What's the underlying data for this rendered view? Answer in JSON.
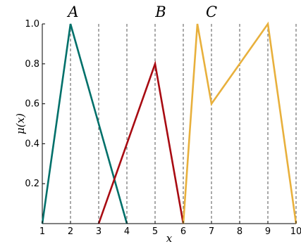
{
  "chart_data": {
    "type": "line",
    "title": "",
    "xlabel": "x",
    "ylabel": "μ(x)",
    "xlim": [
      1,
      10
    ],
    "ylim": [
      0,
      1.0
    ],
    "x_ticks": [
      "1",
      "2",
      "3",
      "4",
      "5",
      "6",
      "7",
      "8",
      "9",
      "10"
    ],
    "y_ticks": [
      "0.2",
      "0.4",
      "0.6",
      "0.8",
      "1.0"
    ],
    "x_tick_values": [
      1,
      2,
      3,
      4,
      5,
      6,
      7,
      8,
      9,
      10
    ],
    "y_tick_values": [
      0.2,
      0.4,
      0.6,
      0.8,
      1.0
    ],
    "grid": "vertical dashed at x ticks",
    "legend": "none",
    "series": [
      {
        "name": "A",
        "color": "#00706a",
        "x": [
          1,
          2,
          4
        ],
        "y": [
          0,
          1.0,
          0
        ]
      },
      {
        "name": "B",
        "color": "#a80b12",
        "x": [
          3,
          5,
          6
        ],
        "y": [
          0,
          0.8,
          0
        ]
      },
      {
        "name": "C",
        "color": "#e8b03c",
        "x": [
          6,
          6.5,
          7,
          9,
          10
        ],
        "y": [
          0,
          1.0,
          0.6,
          1.0,
          0
        ]
      }
    ],
    "curve_labels": [
      {
        "text": "A",
        "x": 2.1
      },
      {
        "text": "B",
        "x": 5.2
      },
      {
        "text": "C",
        "x": 7.0
      }
    ]
  }
}
